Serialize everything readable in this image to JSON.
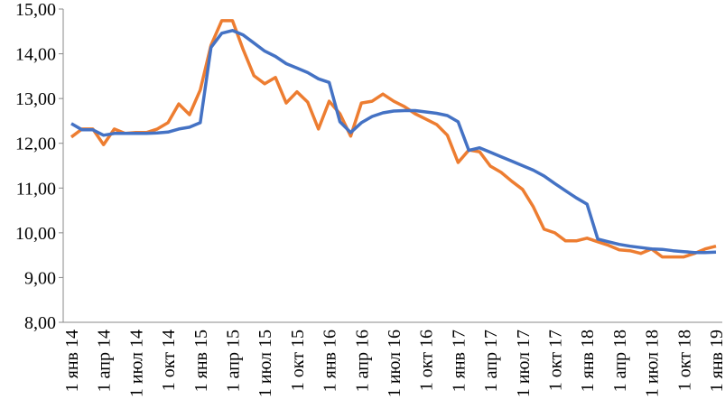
{
  "chart_data": {
    "type": "line",
    "categories": [
      "1 янв 14",
      null,
      null,
      "1 апр 14",
      null,
      null,
      "1 июл 14",
      null,
      null,
      "1 окт 14",
      null,
      null,
      "1 янв 15",
      null,
      null,
      "1 апр 15",
      null,
      null,
      "1 июл 15",
      null,
      null,
      "1 окт 15",
      null,
      null,
      "1 янв 16",
      null,
      null,
      "1 апр 16",
      null,
      null,
      "1 июл 16",
      null,
      null,
      "1 окт 16",
      null,
      null,
      "1 янв 17",
      null,
      null,
      "1 апр 17",
      null,
      null,
      "1 июл 17",
      null,
      null,
      "1 окт 17",
      null,
      null,
      "1 янв 18",
      null,
      null,
      "1 апр 18",
      null,
      null,
      "1 июл 18",
      null,
      null,
      "1 окт 18",
      null,
      null,
      "1 янв 19"
    ],
    "series": [
      {
        "color": "#ed7d31",
        "values": [
          12.14,
          12.32,
          12.32,
          11.97,
          12.32,
          12.22,
          12.24,
          12.24,
          12.32,
          12.46,
          12.88,
          12.64,
          13.19,
          14.19,
          14.74,
          14.74,
          14.09,
          13.51,
          13.33,
          13.47,
          12.9,
          13.15,
          12.92,
          12.32,
          12.94,
          12.66,
          12.16,
          12.9,
          12.94,
          13.1,
          12.94,
          12.82,
          12.66,
          12.54,
          12.42,
          12.18,
          11.57,
          11.85,
          11.81,
          11.49,
          11.35,
          11.15,
          10.97,
          10.58,
          10.08,
          10.0,
          9.82,
          9.82,
          9.88,
          9.8,
          9.72,
          9.62,
          9.6,
          9.54,
          9.64,
          9.46,
          9.46,
          9.46,
          9.54,
          9.64,
          9.7
        ]
      },
      {
        "color": "#4472c4",
        "values": [
          12.44,
          12.3,
          12.3,
          12.18,
          12.22,
          12.22,
          12.22,
          12.22,
          12.23,
          12.25,
          12.32,
          12.36,
          12.46,
          14.14,
          14.46,
          14.52,
          14.42,
          14.24,
          14.06,
          13.94,
          13.78,
          13.68,
          13.58,
          13.44,
          13.36,
          12.48,
          12.24,
          12.46,
          12.6,
          12.68,
          12.72,
          12.73,
          12.73,
          12.7,
          12.67,
          12.62,
          12.48,
          11.84,
          11.9,
          11.8,
          11.7,
          11.6,
          11.5,
          11.4,
          11.27,
          11.1,
          10.94,
          10.78,
          10.64,
          9.86,
          9.8,
          9.74,
          9.7,
          9.67,
          9.64,
          9.63,
          9.6,
          9.58,
          9.56,
          9.56,
          9.57
        ]
      }
    ],
    "ylim": [
      8,
      15
    ],
    "yticks": [
      {
        "value": 8,
        "label": "8,00"
      },
      {
        "value": 9,
        "label": "9,00"
      },
      {
        "value": 10,
        "label": "10,00"
      },
      {
        "value": 11,
        "label": "11,00"
      },
      {
        "value": 12,
        "label": "12,00"
      },
      {
        "value": 13,
        "label": "13,00"
      },
      {
        "value": 14,
        "label": "14,00"
      },
      {
        "value": 15,
        "label": "15,00"
      }
    ],
    "grid": false
  }
}
